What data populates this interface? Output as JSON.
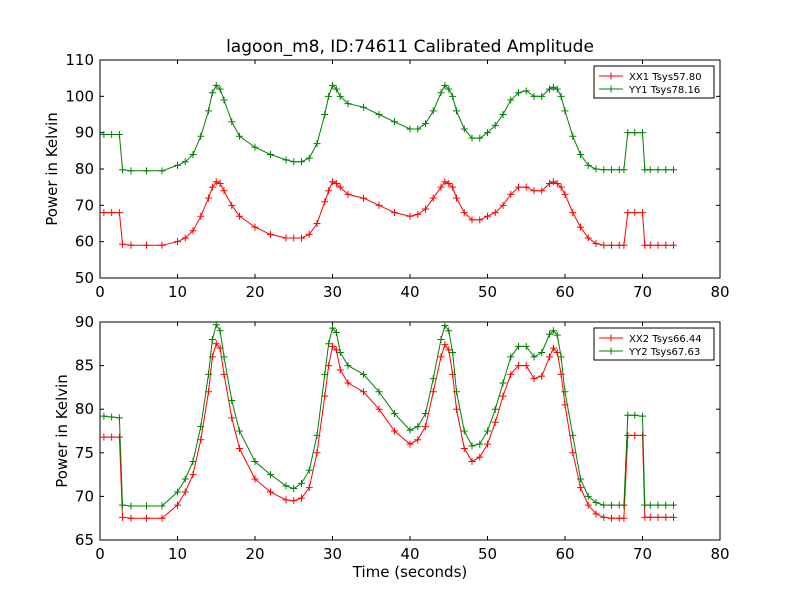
{
  "chart_data": [
    {
      "type": "line",
      "title": "lagoon_m8, ID:74611 Calibrated Amplitude",
      "xlabel": "",
      "ylabel": "Power in Kelvin",
      "xlim": [
        0,
        80
      ],
      "ylim": [
        50,
        110
      ],
      "xticks": [
        "0",
        "10",
        "20",
        "30",
        "40",
        "50",
        "60",
        "70",
        "80"
      ],
      "yticks": [
        "50",
        "60",
        "70",
        "80",
        "90",
        "100",
        "110"
      ],
      "legend_position": "top-right",
      "grid": false,
      "marker": "+",
      "x": [
        0.5,
        1.5,
        2.5,
        2.9,
        4,
        6,
        8,
        10,
        11,
        12,
        13,
        14,
        14.5,
        15,
        15.5,
        16,
        17,
        18,
        20,
        22,
        24,
        25,
        26,
        27,
        28,
        29,
        29.5,
        30,
        30.5,
        31,
        32,
        34,
        36,
        38,
        40,
        41,
        42,
        43,
        44,
        44.5,
        45,
        45.5,
        46,
        47,
        48,
        49,
        50,
        51,
        52,
        53,
        54,
        55,
        56,
        57,
        58,
        58.5,
        59,
        59.5,
        60,
        61,
        62,
        63,
        64,
        65,
        66,
        67,
        67.6,
        68.1,
        69,
        70,
        70.3,
        71,
        72,
        73,
        74
      ],
      "series": [
        {
          "name": "XX1 Tsys57.80",
          "color": "#ff0000",
          "values": [
            68.0,
            68.0,
            68.0,
            59.3,
            59.0,
            59.0,
            59.0,
            60.0,
            61.0,
            63.0,
            67.0,
            72.0,
            75.0,
            76.5,
            76.0,
            74.0,
            70.0,
            67.0,
            64.0,
            62.0,
            61.0,
            61.0,
            61.0,
            62.0,
            65.0,
            71.0,
            74.0,
            76.5,
            76.0,
            75.0,
            73.0,
            72.0,
            70.0,
            68.0,
            67.0,
            67.5,
            69.0,
            72.0,
            75.0,
            76.5,
            76.0,
            75.0,
            72.0,
            68.0,
            66.0,
            66.0,
            67.0,
            68.0,
            70.0,
            73.0,
            75.0,
            75.0,
            74.0,
            74.0,
            76.0,
            76.5,
            76.0,
            75.0,
            73.0,
            68.0,
            64.0,
            61.0,
            59.5,
            59.0,
            59.0,
            59.0,
            59.0,
            68.0,
            68.0,
            68.0,
            59.0,
            59.0,
            59.0,
            59.0,
            59.0
          ]
        },
        {
          "name": "YY1 Tsys78.16",
          "color": "#008000",
          "values": [
            89.5,
            89.5,
            89.5,
            79.8,
            79.5,
            79.5,
            79.5,
            81.0,
            82.0,
            84.0,
            89.0,
            96.0,
            101.0,
            103.0,
            102.0,
            99.0,
            93.0,
            89.0,
            86.0,
            84.0,
            82.5,
            82.0,
            82.0,
            83.0,
            87.0,
            95.0,
            100.0,
            103.0,
            102.0,
            100.0,
            98.0,
            97.0,
            95.0,
            93.0,
            91.0,
            91.0,
            92.5,
            96.0,
            101.0,
            103.0,
            102.0,
            100.0,
            96.0,
            91.0,
            88.5,
            88.5,
            90.0,
            92.0,
            95.0,
            99.0,
            101.0,
            101.5,
            100.0,
            100.0,
            102.0,
            102.5,
            102.0,
            100.0,
            96.0,
            89.0,
            84.0,
            81.0,
            80.0,
            79.8,
            79.8,
            79.8,
            79.8,
            90.0,
            90.0,
            90.0,
            79.8,
            79.8,
            79.8,
            79.8,
            79.8
          ]
        }
      ]
    },
    {
      "type": "line",
      "title": "",
      "xlabel": "Time (seconds)",
      "ylabel": "Power in Kelvin",
      "xlim": [
        0,
        80
      ],
      "ylim": [
        65,
        90
      ],
      "xticks": [
        "0",
        "10",
        "20",
        "30",
        "40",
        "50",
        "60",
        "70",
        "80"
      ],
      "yticks": [
        "65",
        "70",
        "75",
        "80",
        "85",
        "90"
      ],
      "legend_position": "top-right",
      "grid": false,
      "marker": "+",
      "x": [
        0.5,
        1.5,
        2.5,
        2.9,
        4,
        6,
        8,
        10,
        11,
        12,
        13,
        14,
        14.5,
        15,
        15.5,
        16,
        17,
        18,
        20,
        22,
        24,
        25,
        26,
        27,
        28,
        29,
        29.5,
        30,
        30.5,
        31,
        32,
        34,
        36,
        38,
        40,
        41,
        42,
        43,
        44,
        44.5,
        45,
        45.5,
        46,
        47,
        48,
        49,
        50,
        51,
        52,
        53,
        54,
        55,
        56,
        57,
        58,
        58.5,
        59,
        59.5,
        60,
        61,
        62,
        63,
        64,
        65,
        66,
        67,
        67.6,
        68.1,
        69,
        70,
        70.3,
        71,
        72,
        73,
        74
      ],
      "series": [
        {
          "name": "XX2 Tsys66.44",
          "color": "#ff0000",
          "values": [
            76.8,
            76.8,
            76.8,
            67.6,
            67.5,
            67.5,
            67.5,
            69.0,
            70.5,
            72.5,
            76.5,
            82.0,
            86.0,
            87.5,
            87.0,
            84.0,
            79.0,
            75.5,
            72.0,
            70.5,
            69.6,
            69.5,
            69.8,
            71.0,
            75.0,
            81.5,
            85.0,
            87.2,
            86.8,
            84.5,
            83.0,
            82.0,
            80.0,
            77.5,
            76.0,
            76.5,
            78.0,
            82.0,
            86.0,
            87.4,
            86.8,
            84.0,
            80.0,
            75.5,
            74.0,
            74.5,
            76.0,
            78.5,
            81.5,
            84.0,
            85.0,
            85.0,
            83.5,
            83.8,
            86.0,
            87.0,
            86.5,
            84.0,
            80.5,
            75.0,
            71.0,
            69.0,
            68.0,
            67.6,
            67.5,
            67.5,
            67.5,
            77.0,
            77.0,
            77.0,
            67.6,
            67.6,
            67.6,
            67.6,
            67.6
          ]
        },
        {
          "name": "YY2 Tsys67.63",
          "color": "#008000",
          "values": [
            79.2,
            79.1,
            79.0,
            69.0,
            68.9,
            68.9,
            68.9,
            70.5,
            72.0,
            74.0,
            78.0,
            84.0,
            88.0,
            89.7,
            89.0,
            86.0,
            81.0,
            77.5,
            74.0,
            72.5,
            71.2,
            70.9,
            71.5,
            73.0,
            77.0,
            84.0,
            87.5,
            89.3,
            88.8,
            86.5,
            85.0,
            84.0,
            82.0,
            79.5,
            77.6,
            78.0,
            79.5,
            83.5,
            88.0,
            89.6,
            89.0,
            86.5,
            82.0,
            77.5,
            75.8,
            76.0,
            77.5,
            80.0,
            83.0,
            86.0,
            87.2,
            87.2,
            86.0,
            86.5,
            88.6,
            89.0,
            88.5,
            86.0,
            82.0,
            77.0,
            72.0,
            70.0,
            69.3,
            69.0,
            69.0,
            69.0,
            69.0,
            79.3,
            79.3,
            79.2,
            69.0,
            69.0,
            69.0,
            69.0,
            69.0
          ]
        }
      ]
    }
  ]
}
